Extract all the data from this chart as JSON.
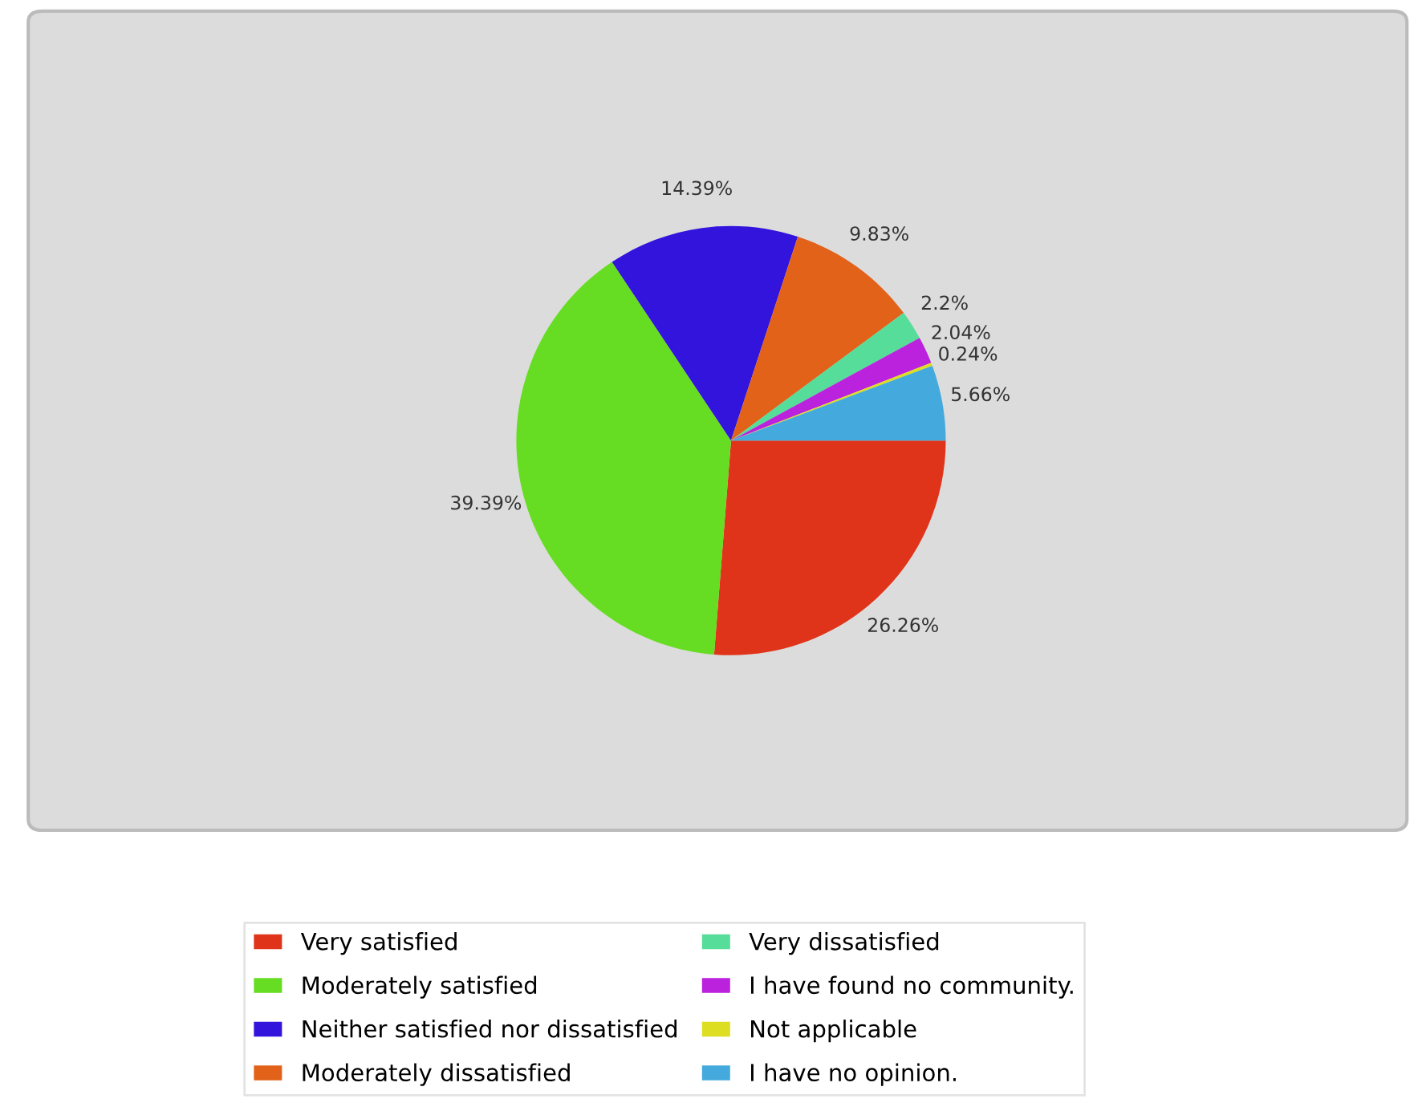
{
  "chart_data": {
    "type": "pie",
    "categories": [
      "Very satisfied",
      "Moderately satisfied",
      "Neither satisfied nor dissatisfied",
      "Moderately dissatisfied",
      "Very dissatisfied",
      "I have found no community.",
      "Not applicable",
      "I have no opinion."
    ],
    "values": [
      26.26,
      39.39,
      14.39,
      9.83,
      2.2,
      2.04,
      0.24,
      5.66
    ],
    "colors": [
      "#e0341a",
      "#66dd22",
      "#3314dd",
      "#e2621a",
      "#55dd99",
      "#bb22dd",
      "#dddd22",
      "#44aadd"
    ],
    "value_labels": [
      "26.26%",
      "39.39%",
      "14.39%",
      "9.83%",
      "2.2%",
      "2.04%",
      "0.24%",
      "5.66%"
    ],
    "legend": "bottom"
  }
}
